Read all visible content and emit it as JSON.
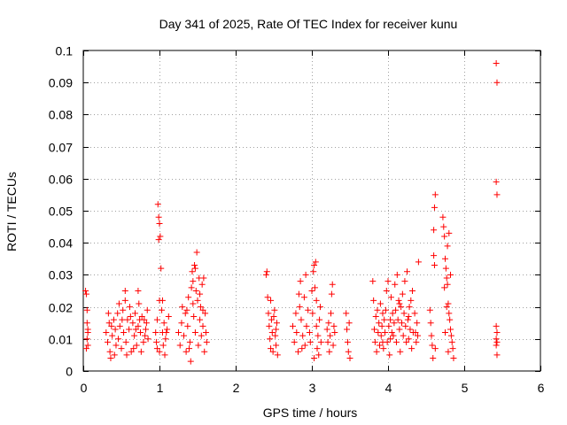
{
  "chart_data": {
    "type": "scatter",
    "title": "Day 341 of 2025, Rate Of TEC Index for receiver kunu",
    "xlabel": "GPS time / hours",
    "ylabel": "ROTI / TECUs",
    "xlim": [
      0,
      6
    ],
    "ylim": [
      0,
      0.1
    ],
    "xticks": [
      0,
      1,
      2,
      3,
      4,
      5,
      6
    ],
    "xtick_labels": [
      "0",
      "1",
      "2",
      "3",
      "4",
      "5",
      "6"
    ],
    "yticks": [
      0,
      0.01,
      0.02,
      0.03,
      0.04,
      0.05,
      0.06,
      0.07,
      0.08,
      0.09,
      0.1
    ],
    "ytick_labels": [
      "0",
      "0.01",
      "0.02",
      "0.03",
      "0.04",
      "0.05",
      "0.06",
      "0.07",
      "0.08",
      "0.09",
      "0.1"
    ],
    "grid": true,
    "marker": "+",
    "color": "#ff0000",
    "series": [
      {
        "name": "ROTI",
        "points": [
          [
            0.03,
            0.025
          ],
          [
            0.04,
            0.024
          ],
          [
            0.05,
            0.019
          ],
          [
            0.05,
            0.015
          ],
          [
            0.06,
            0.012
          ],
          [
            0.05,
            0.01
          ],
          [
            0.06,
            0.008
          ],
          [
            0.04,
            0.007
          ],
          [
            0.06,
            0.013
          ],
          [
            0.3,
            0.012
          ],
          [
            0.32,
            0.009
          ],
          [
            0.34,
            0.015
          ],
          [
            0.35,
            0.006
          ],
          [
            0.36,
            0.004
          ],
          [
            0.38,
            0.011
          ],
          [
            0.4,
            0.016
          ],
          [
            0.42,
            0.013
          ],
          [
            0.43,
            0.008
          ],
          [
            0.45,
            0.018
          ],
          [
            0.46,
            0.01
          ],
          [
            0.48,
            0.014
          ],
          [
            0.5,
            0.007
          ],
          [
            0.52,
            0.019
          ],
          [
            0.53,
            0.012
          ],
          [
            0.55,
            0.022
          ],
          [
            0.56,
            0.009
          ],
          [
            0.58,
            0.016
          ],
          [
            0.6,
            0.013
          ],
          [
            0.61,
            0.02
          ],
          [
            0.63,
            0.006
          ],
          [
            0.65,
            0.015
          ],
          [
            0.67,
            0.011
          ],
          [
            0.68,
            0.018
          ],
          [
            0.7,
            0.008
          ],
          [
            0.72,
            0.014
          ],
          [
            0.73,
            0.021
          ],
          [
            0.75,
            0.012
          ],
          [
            0.77,
            0.017
          ],
          [
            0.79,
            0.009
          ],
          [
            0.8,
            0.016
          ],
          [
            0.82,
            0.013
          ],
          [
            0.84,
            0.019
          ],
          [
            0.85,
            0.01
          ],
          [
            0.33,
            0.018
          ],
          [
            0.37,
            0.014
          ],
          [
            0.41,
            0.005
          ],
          [
            0.47,
            0.021
          ],
          [
            0.51,
            0.016
          ],
          [
            0.57,
            0.005
          ],
          [
            0.62,
            0.017
          ],
          [
            0.66,
            0.007
          ],
          [
            0.69,
            0.013
          ],
          [
            0.74,
            0.016
          ],
          [
            0.76,
            0.006
          ],
          [
            0.81,
            0.011
          ],
          [
            0.83,
            0.015
          ],
          [
            0.55,
            0.025
          ],
          [
            0.72,
            0.025
          ],
          [
            0.95,
            0.012
          ],
          [
            0.96,
            0.009
          ],
          [
            0.97,
            0.016
          ],
          [
            0.98,
            0.052
          ],
          [
            0.99,
            0.048
          ],
          [
            1.0,
            0.046
          ],
          [
            0.99,
            0.041
          ],
          [
            1.01,
            0.042
          ],
          [
            1.02,
            0.032
          ],
          [
            1.0,
            0.022
          ],
          [
            1.03,
            0.019
          ],
          [
            1.04,
            0.012
          ],
          [
            1.05,
            0.008
          ],
          [
            1.06,
            0.015
          ],
          [
            1.08,
            0.01
          ],
          [
            1.1,
            0.013
          ],
          [
            1.12,
            0.017
          ],
          [
            1.0,
            0.006
          ],
          [
            1.04,
            0.022
          ],
          [
            1.07,
            0.005
          ],
          [
            0.97,
            0.007
          ],
          [
            1.09,
            0.012
          ],
          [
            1.25,
            0.012
          ],
          [
            1.27,
            0.008
          ],
          [
            1.29,
            0.015
          ],
          [
            1.3,
            0.02
          ],
          [
            1.32,
            0.011
          ],
          [
            1.34,
            0.018
          ],
          [
            1.35,
            0.006
          ],
          [
            1.37,
            0.014
          ],
          [
            1.38,
            0.023
          ],
          [
            1.4,
            0.009
          ],
          [
            1.41,
            0.003
          ],
          [
            1.42,
            0.026
          ],
          [
            1.43,
            0.031
          ],
          [
            1.44,
            0.028
          ],
          [
            1.45,
            0.017
          ],
          [
            1.46,
            0.033
          ],
          [
            1.47,
            0.012
          ],
          [
            1.48,
            0.025
          ],
          [
            1.49,
            0.037
          ],
          [
            1.5,
            0.022
          ],
          [
            1.51,
            0.008
          ],
          [
            1.52,
            0.029
          ],
          [
            1.53,
            0.016
          ],
          [
            1.54,
            0.02
          ],
          [
            1.55,
            0.011
          ],
          [
            1.56,
            0.027
          ],
          [
            1.57,
            0.014
          ],
          [
            1.58,
            0.029
          ],
          [
            1.59,
            0.006
          ],
          [
            1.6,
            0.018
          ],
          [
            1.61,
            0.012
          ],
          [
            1.62,
            0.009
          ],
          [
            1.36,
            0.019
          ],
          [
            1.39,
            0.007
          ],
          [
            1.44,
            0.021
          ],
          [
            1.47,
            0.032
          ],
          [
            1.53,
            0.024
          ],
          [
            1.57,
            0.019
          ],
          [
            2.4,
            0.03
          ],
          [
            2.41,
            0.031
          ],
          [
            2.42,
            0.023
          ],
          [
            2.43,
            0.018
          ],
          [
            2.44,
            0.014
          ],
          [
            2.45,
            0.01
          ],
          [
            2.46,
            0.007
          ],
          [
            2.47,
            0.016
          ],
          [
            2.48,
            0.012
          ],
          [
            2.49,
            0.006
          ],
          [
            2.5,
            0.017
          ],
          [
            2.51,
            0.019
          ],
          [
            2.52,
            0.011
          ],
          [
            2.53,
            0.008
          ],
          [
            2.54,
            0.015
          ],
          [
            2.55,
            0.005
          ],
          [
            2.46,
            0.022
          ],
          [
            2.53,
            0.013
          ],
          [
            2.75,
            0.014
          ],
          [
            2.77,
            0.009
          ],
          [
            2.79,
            0.018
          ],
          [
            2.8,
            0.012
          ],
          [
            2.82,
            0.006
          ],
          [
            2.84,
            0.02
          ],
          [
            2.85,
            0.028
          ],
          [
            2.86,
            0.016
          ],
          [
            2.88,
            0.011
          ],
          [
            2.9,
            0.023
          ],
          [
            2.91,
            0.008
          ],
          [
            2.92,
            0.03
          ],
          [
            2.93,
            0.014
          ],
          [
            2.95,
            0.019
          ],
          [
            2.83,
            0.024
          ],
          [
            2.87,
            0.007
          ],
          [
            2.97,
            0.012
          ],
          [
            2.98,
            0.009
          ],
          [
            3.0,
            0.025
          ],
          [
            3.01,
            0.018
          ],
          [
            3.02,
            0.031
          ],
          [
            3.03,
            0.033
          ],
          [
            3.04,
            0.026
          ],
          [
            3.05,
            0.034
          ],
          [
            3.06,
            0.014
          ],
          [
            3.07,
            0.007
          ],
          [
            3.08,
            0.011
          ],
          [
            3.09,
            0.005
          ],
          [
            3.1,
            0.016
          ],
          [
            3.11,
            0.02
          ],
          [
            3.12,
            0.009
          ],
          [
            3.03,
            0.004
          ],
          [
            3.06,
            0.022
          ],
          [
            3.2,
            0.013
          ],
          [
            3.21,
            0.009
          ],
          [
            3.22,
            0.015
          ],
          [
            3.23,
            0.006
          ],
          [
            3.24,
            0.011
          ],
          [
            3.25,
            0.018
          ],
          [
            3.26,
            0.024
          ],
          [
            3.27,
            0.027
          ],
          [
            3.28,
            0.008
          ],
          [
            3.29,
            0.014
          ],
          [
            3.3,
            0.012
          ],
          [
            3.45,
            0.018
          ],
          [
            3.46,
            0.013
          ],
          [
            3.47,
            0.009
          ],
          [
            3.48,
            0.006
          ],
          [
            3.49,
            0.015
          ],
          [
            3.5,
            0.004
          ],
          [
            3.8,
            0.028
          ],
          [
            3.81,
            0.022
          ],
          [
            3.82,
            0.013
          ],
          [
            3.83,
            0.009
          ],
          [
            3.84,
            0.017
          ],
          [
            3.85,
            0.006
          ],
          [
            3.86,
            0.019
          ],
          [
            3.87,
            0.012
          ],
          [
            3.88,
            0.015
          ],
          [
            3.89,
            0.008
          ],
          [
            3.9,
            0.021
          ],
          [
            3.91,
            0.011
          ],
          [
            3.92,
            0.014
          ],
          [
            3.93,
            0.018
          ],
          [
            3.94,
            0.007
          ],
          [
            3.95,
            0.016
          ],
          [
            3.96,
            0.012
          ],
          [
            3.97,
            0.019
          ],
          [
            3.98,
            0.025
          ],
          [
            3.99,
            0.009
          ],
          [
            4.0,
            0.028
          ],
          [
            4.01,
            0.014
          ],
          [
            4.02,
            0.005
          ],
          [
            4.03,
            0.016
          ],
          [
            4.04,
            0.023
          ],
          [
            4.05,
            0.012
          ],
          [
            4.06,
            0.018
          ],
          [
            4.07,
            0.011
          ],
          [
            4.08,
            0.015
          ],
          [
            4.09,
            0.027
          ],
          [
            4.1,
            0.019
          ],
          [
            4.11,
            0.009
          ],
          [
            4.12,
            0.03
          ],
          [
            4.13,
            0.016
          ],
          [
            4.14,
            0.022
          ],
          [
            4.15,
            0.013
          ],
          [
            4.16,
            0.006
          ],
          [
            4.17,
            0.02
          ],
          [
            4.18,
            0.015
          ],
          [
            4.19,
            0.024
          ],
          [
            4.2,
            0.011
          ],
          [
            4.21,
            0.018
          ],
          [
            4.22,
            0.028
          ],
          [
            4.23,
            0.014
          ],
          [
            4.24,
            0.009
          ],
          [
            4.25,
            0.031
          ],
          [
            4.26,
            0.016
          ],
          [
            4.27,
            0.01
          ],
          [
            4.28,
            0.02
          ],
          [
            4.29,
            0.013
          ],
          [
            4.3,
            0.022
          ],
          [
            4.31,
            0.007
          ],
          [
            4.32,
            0.025
          ],
          [
            4.33,
            0.012
          ],
          [
            3.93,
            0.009
          ],
          [
            4.03,
            0.01
          ],
          [
            4.15,
            0.021
          ],
          [
            4.27,
            0.017
          ],
          [
            4.35,
            0.018
          ],
          [
            4.36,
            0.012
          ],
          [
            4.37,
            0.009
          ],
          [
            4.38,
            0.015
          ],
          [
            4.39,
            0.011
          ],
          [
            4.4,
            0.034
          ],
          [
            4.55,
            0.019
          ],
          [
            4.56,
            0.015
          ],
          [
            4.57,
            0.011
          ],
          [
            4.58,
            0.008
          ],
          [
            4.59,
            0.004
          ],
          [
            4.6,
            0.044
          ],
          [
            4.61,
            0.051
          ],
          [
            4.62,
            0.055
          ],
          [
            4.6,
            0.036
          ],
          [
            4.61,
            0.033
          ],
          [
            4.62,
            0.007
          ],
          [
            4.72,
            0.048
          ],
          [
            4.73,
            0.045
          ],
          [
            4.74,
            0.042
          ],
          [
            4.75,
            0.035
          ],
          [
            4.76,
            0.032
          ],
          [
            4.77,
            0.029
          ],
          [
            4.78,
            0.027
          ],
          [
            4.79,
            0.021
          ],
          [
            4.8,
            0.018
          ],
          [
            4.81,
            0.016
          ],
          [
            4.82,
            0.013
          ],
          [
            4.83,
            0.011
          ],
          [
            4.84,
            0.009
          ],
          [
            4.85,
            0.007
          ],
          [
            4.86,
            0.004
          ],
          [
            4.74,
            0.026
          ],
          [
            4.78,
            0.039
          ],
          [
            4.8,
            0.043
          ],
          [
            4.82,
            0.03
          ],
          [
            4.75,
            0.012
          ],
          [
            4.77,
            0.02
          ],
          [
            4.79,
            0.006
          ],
          [
            5.42,
            0.096
          ],
          [
            5.43,
            0.09
          ],
          [
            5.42,
            0.059
          ],
          [
            5.43,
            0.055
          ],
          [
            5.42,
            0.014
          ],
          [
            5.43,
            0.012
          ],
          [
            5.42,
            0.01
          ],
          [
            5.43,
            0.009
          ],
          [
            5.42,
            0.008
          ],
          [
            5.43,
            0.005
          ]
        ]
      }
    ]
  }
}
